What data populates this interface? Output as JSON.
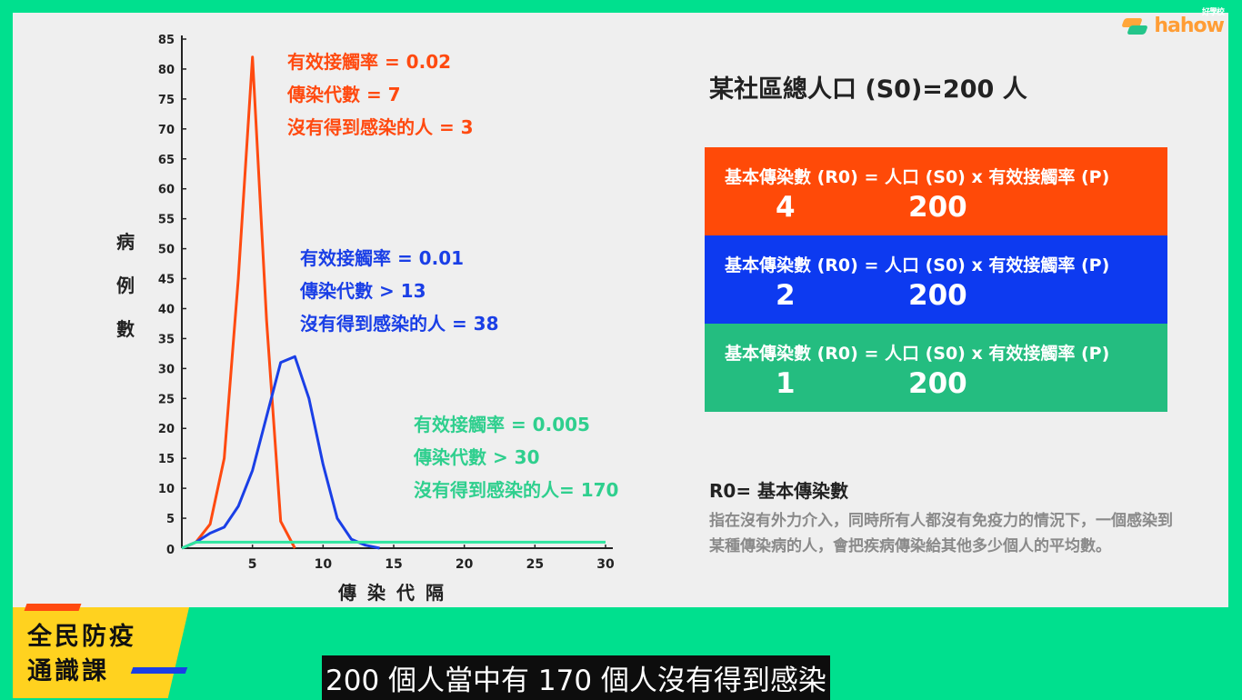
{
  "logo": {
    "brand": "hahow",
    "sub": "好學校"
  },
  "chart_data": {
    "type": "line",
    "xlabel": "傳染代隔",
    "ylabel": "病例數",
    "xlim": [
      0,
      30
    ],
    "ylim": [
      0,
      85
    ],
    "xticks": [
      0,
      5,
      10,
      15,
      20,
      25,
      30
    ],
    "yticks": [
      0,
      5,
      10,
      15,
      20,
      25,
      30,
      35,
      40,
      45,
      50,
      55,
      60,
      65,
      70,
      75,
      80,
      85
    ],
    "series": [
      {
        "color": "#ff4a10",
        "x": [
          0,
          1,
          2,
          3,
          4,
          5,
          6,
          7,
          8
        ],
        "y": [
          0,
          1,
          4,
          15,
          45,
          82,
          38,
          4.5,
          0
        ]
      },
      {
        "color": "#1a3fe6",
        "x": [
          0,
          1,
          2,
          3,
          4,
          5,
          6,
          7,
          8,
          9,
          10,
          11,
          12,
          13,
          14
        ],
        "y": [
          0,
          1,
          2.5,
          3.5,
          7,
          13,
          22,
          31,
          32,
          25,
          14,
          5,
          1.5,
          0.5,
          0
        ]
      },
      {
        "color": "#2fe6a0",
        "x": [
          0,
          1,
          2,
          30
        ],
        "y": [
          0,
          1,
          1,
          1
        ]
      }
    ]
  },
  "annotations": {
    "red": [
      "有效接觸率 = 0.02",
      "傳染代數 = 7",
      "沒有得到感染的人 = 3"
    ],
    "blue": [
      "有效接觸率 = 0.01",
      "傳染代數 > 13",
      "沒有得到感染的人 = 38"
    ],
    "green": [
      "有效接觸率 = 0.005",
      "傳染代數 > 30",
      "沒有得到感染的人= 170"
    ]
  },
  "population": "某社區總人口 (S0)=200 人",
  "boxes": [
    {
      "formula": "基本傳染數 (R0) = 人口 (S0) x 有效接觸率 (P)",
      "r0": "4",
      "s0": "200",
      "color": "#ff4a08"
    },
    {
      "formula": "基本傳染數 (R0) = 人口 (S0) x 有效接觸率 (P)",
      "r0": "2",
      "s0": "200",
      "color": "#0d3af0"
    },
    {
      "formula": "基本傳染數 (R0) = 人口 (S0) x 有效接觸率 (P)",
      "r0": "1",
      "s0": "200",
      "color": "#24bd80"
    }
  ],
  "definition": {
    "title": "R0= 基本傳染數",
    "text": "指在沒有外力介入，同時所有人都沒有免疫力的情況下，一個感染到某種傳染病的人，會把疾病傳染給其他多少個人的平均數。"
  },
  "badge": {
    "line1": "全民防疫",
    "line2": "通識課"
  },
  "subtitle": "200 個人當中有 170 個人沒有得到感染"
}
